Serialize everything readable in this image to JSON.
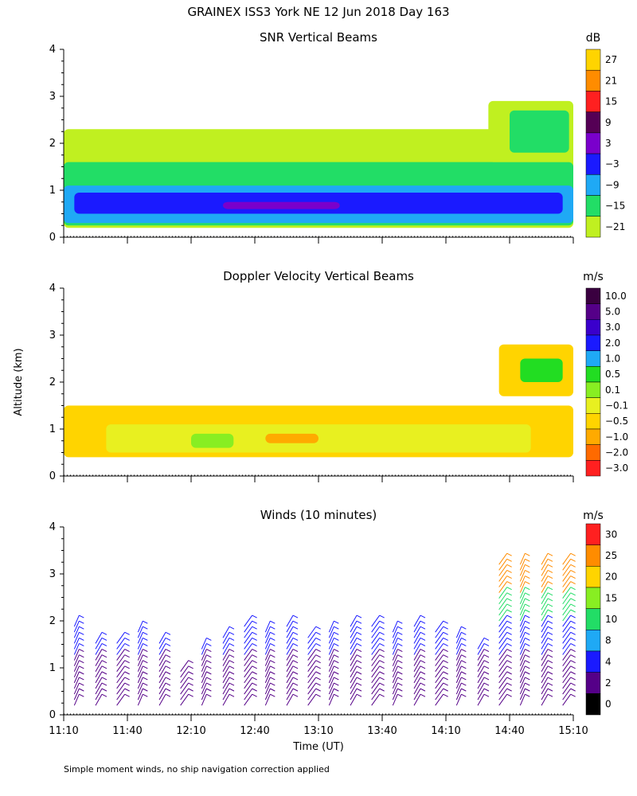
{
  "title": "GRAINEX ISS3 York NE  12 Jun 2018 Day 163",
  "ylabel": "Altitude (km)",
  "xlabel": "Time (UT)",
  "footnote": "Simple moment winds, no ship navigation correction applied",
  "chart_data": [
    {
      "type": "heatmap",
      "title": "SNR Vertical Beams",
      "xlabel": "Time (UT)",
      "ylabel": "Altitude (km)",
      "xlim": [
        0,
        240
      ],
      "ylim": [
        0,
        4
      ],
      "x_tick_labels": [],
      "y_ticks": [
        0,
        1,
        2,
        3,
        4
      ],
      "colorbar": {
        "unit": "dB",
        "labels": [
          "27",
          "21",
          "15",
          "9",
          "3",
          "−3",
          "−9",
          "−15",
          "−21"
        ],
        "colors": [
          "#ffd400",
          "#ff8c00",
          "#ff2020",
          "#550055",
          "#7a00cc",
          "#1a1aff",
          "#1fa9f5",
          "#22dd66",
          "#c0f020"
        ]
      },
      "layers": [
        {
          "level": "-21",
          "color": "#c0f020",
          "bottom": 0.2,
          "top": 2.3,
          "from": 0,
          "to": 240
        },
        {
          "level": "-15",
          "color": "#22dd66",
          "bottom": 0.25,
          "top": 1.6,
          "from": 0,
          "to": 240
        },
        {
          "level": "-9",
          "color": "#1fa9f5",
          "bottom": 0.3,
          "top": 1.1,
          "from": 0,
          "to": 240
        },
        {
          "level": "-3",
          "color": "#1a1aff",
          "bottom": 0.5,
          "top": 0.95,
          "from": 5,
          "to": 235
        },
        {
          "level": "3",
          "color": "#7a00cc",
          "bottom": 0.6,
          "top": 0.75,
          "from": 75,
          "to": 130
        },
        {
          "level": "-21",
          "color": "#c0f020",
          "bottom": 1.6,
          "top": 2.9,
          "from": 200,
          "to": 240
        },
        {
          "level": "-15",
          "color": "#22dd66",
          "bottom": 1.8,
          "top": 2.7,
          "from": 210,
          "to": 238
        }
      ]
    },
    {
      "type": "heatmap",
      "title": "Doppler Velocity Vertical Beams",
      "xlabel": "Time (UT)",
      "ylabel": "Altitude (km)",
      "xlim": [
        0,
        240
      ],
      "ylim": [
        0,
        4
      ],
      "x_tick_labels": [],
      "y_ticks": [
        0,
        1,
        2,
        3,
        4
      ],
      "colorbar": {
        "unit": "m/s",
        "labels": [
          "10.0",
          "5.0",
          "3.0",
          "2.0",
          "1.0",
          "0.5",
          "0.1",
          "−0.1",
          "−0.5",
          "−1.0",
          "−2.0",
          "−3.0"
        ],
        "colors": [
          "#3a0040",
          "#550088",
          "#3a00cc",
          "#1a1aff",
          "#1fa9f5",
          "#22dd22",
          "#88ee22",
          "#e8f020",
          "#ffd400",
          "#ffaa00",
          "#ff6a00",
          "#ff2020"
        ]
      },
      "layers": [
        {
          "level": "-0.5",
          "color": "#ffd400",
          "bottom": 0.4,
          "top": 1.5,
          "from": 0,
          "to": 240
        },
        {
          "level": "-0.1",
          "color": "#e8f020",
          "bottom": 0.5,
          "top": 1.1,
          "from": 20,
          "to": 220
        },
        {
          "level": "0.1",
          "color": "#88ee22",
          "bottom": 0.6,
          "top": 0.9,
          "from": 60,
          "to": 80
        },
        {
          "level": "-1.0",
          "color": "#ffaa00",
          "bottom": 0.7,
          "top": 0.9,
          "from": 95,
          "to": 120
        },
        {
          "level": "-0.5",
          "color": "#ffd400",
          "bottom": 1.7,
          "top": 2.8,
          "from": 205,
          "to": 240
        },
        {
          "level": "0.5",
          "color": "#22dd22",
          "bottom": 2.0,
          "top": 2.5,
          "from": 215,
          "to": 235
        }
      ]
    },
    {
      "type": "wind_barbs",
      "title": "Winds (10 minutes)",
      "xlabel": "Time (UT)",
      "ylabel": "Altitude (km)",
      "xlim": [
        0,
        240
      ],
      "ylim": [
        0,
        4
      ],
      "x_tick_labels": [
        "11:10",
        "11:40",
        "12:10",
        "12:40",
        "13:10",
        "13:40",
        "14:10",
        "14:40",
        "15:10"
      ],
      "y_ticks": [
        0,
        1,
        2,
        3,
        4
      ],
      "colorbar": {
        "unit": "m/s",
        "labels": [
          "30",
          "25",
          "20",
          "15",
          "10",
          "8",
          "4",
          "2",
          "0"
        ],
        "colors": [
          "#ff2020",
          "#ff8c00",
          "#ffd400",
          "#88ee22",
          "#22dd66",
          "#1fa9f5",
          "#1a1aff",
          "#550088",
          "#000000"
        ]
      },
      "profiles": [
        {
          "t": 5,
          "top": 1.9
        },
        {
          "t": 15,
          "top": 1.6
        },
        {
          "t": 25,
          "top": 1.6
        },
        {
          "t": 35,
          "top": 1.8
        },
        {
          "t": 45,
          "top": 1.6
        },
        {
          "t": 55,
          "top": 1.0
        },
        {
          "t": 65,
          "top": 1.5
        },
        {
          "t": 75,
          "top": 1.7
        },
        {
          "t": 85,
          "top": 1.9
        },
        {
          "t": 95,
          "top": 1.8
        },
        {
          "t": 105,
          "top": 1.9
        },
        {
          "t": 115,
          "top": 1.7
        },
        {
          "t": 125,
          "top": 1.8
        },
        {
          "t": 135,
          "top": 1.9
        },
        {
          "t": 145,
          "top": 1.9
        },
        {
          "t": 155,
          "top": 1.8
        },
        {
          "t": 165,
          "top": 1.9
        },
        {
          "t": 175,
          "top": 1.8
        },
        {
          "t": 185,
          "top": 1.7
        },
        {
          "t": 195,
          "top": 1.5
        },
        {
          "t": 205,
          "top": 3.2
        },
        {
          "t": 215,
          "top": 3.3
        },
        {
          "t": 225,
          "top": 3.3
        },
        {
          "t": 235,
          "top": 3.2
        }
      ]
    }
  ]
}
